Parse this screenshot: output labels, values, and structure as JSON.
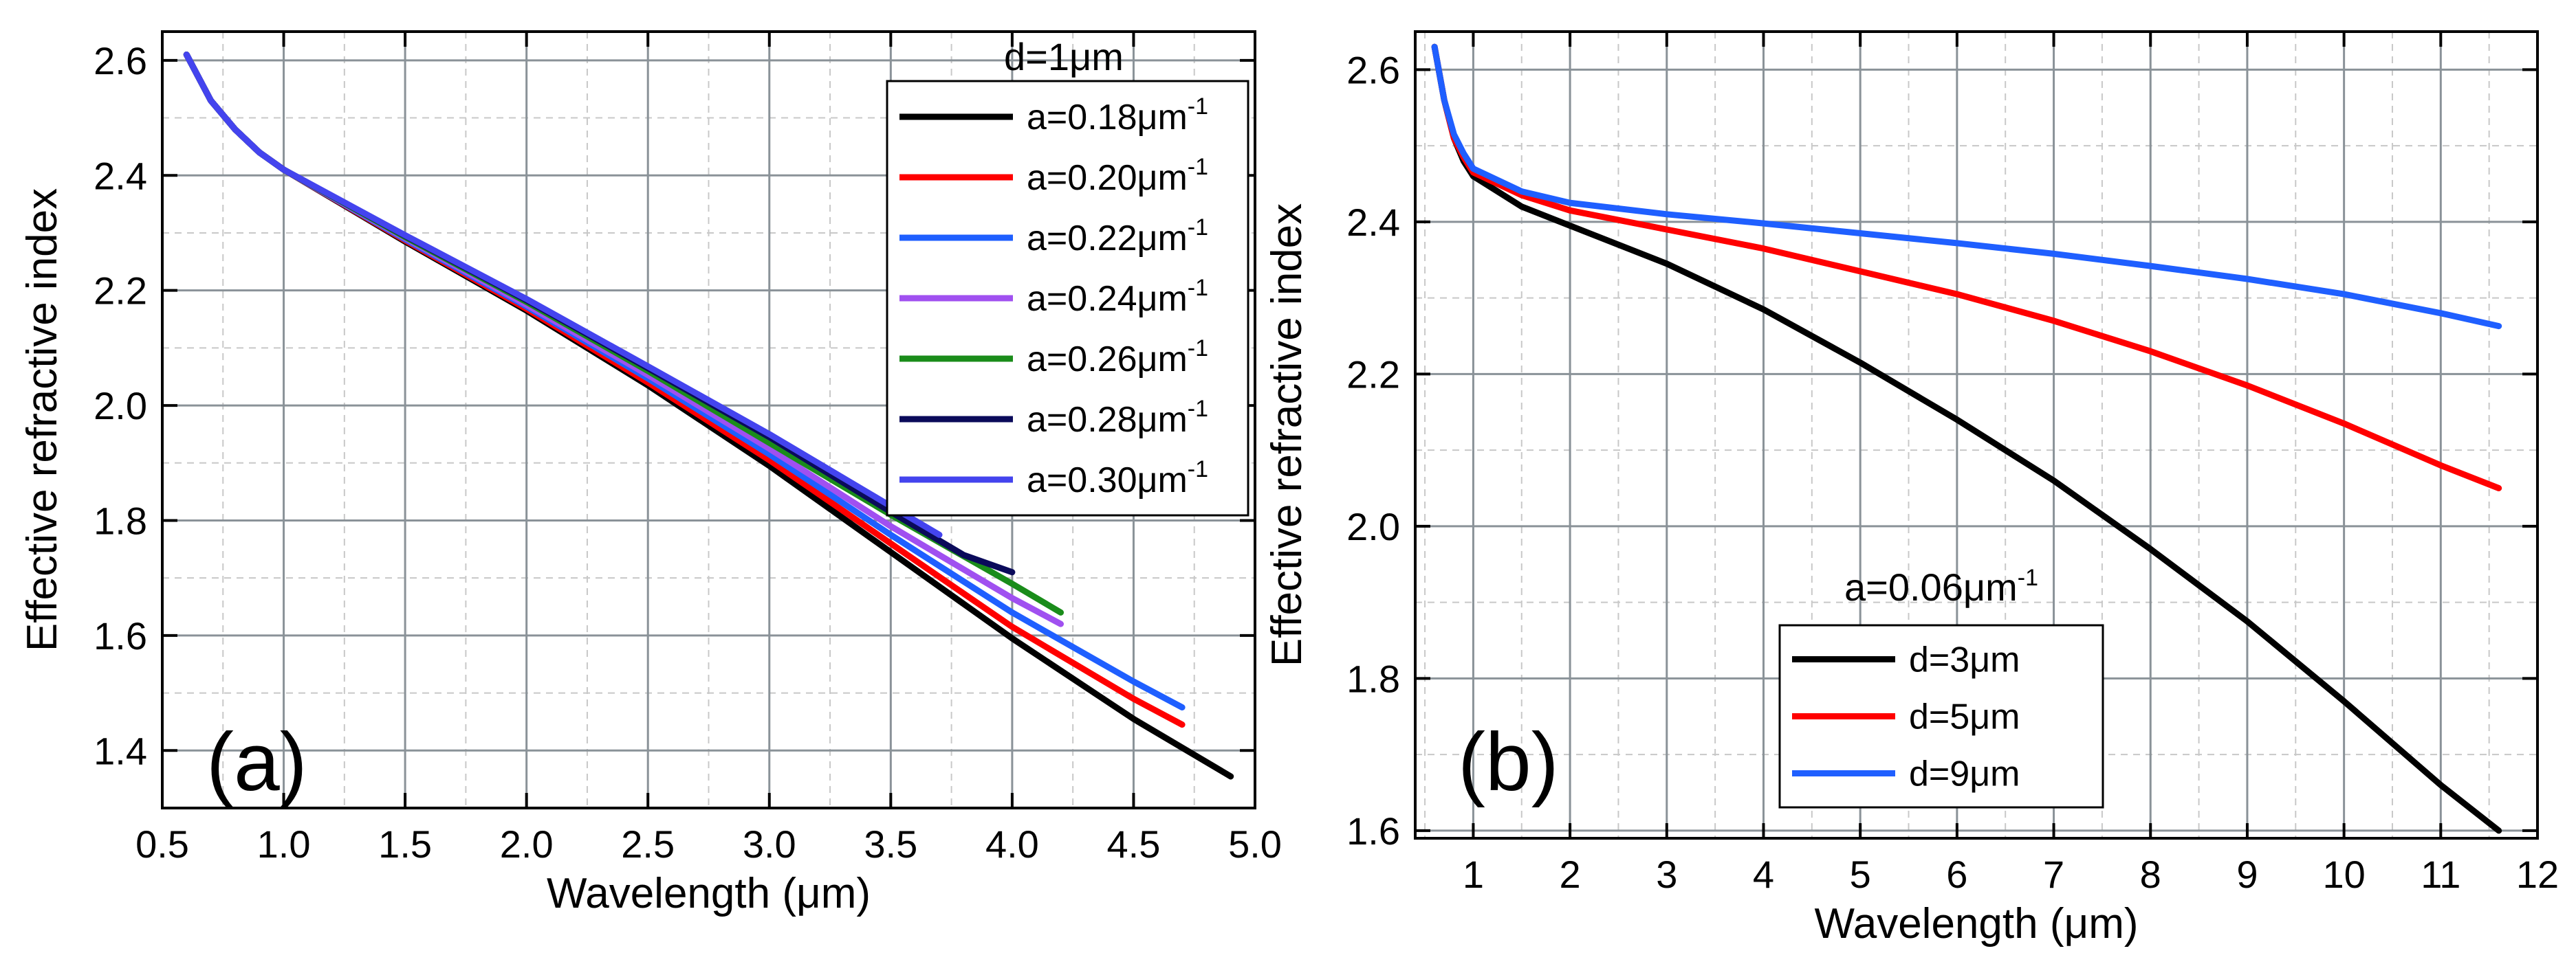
{
  "chart_data": [
    {
      "type": "line",
      "panel_label": "(a)",
      "xlabel": "Wavelength (μm)",
      "ylabel": "Effective refractive index",
      "xlim": [
        0.5,
        5.0
      ],
      "ylim": [
        1.3,
        2.65
      ],
      "xticks": [
        "0.5",
        "1.0",
        "1.5",
        "2.0",
        "2.5",
        "3.0",
        "3.5",
        "4.0",
        "4.5",
        "5.0"
      ],
      "xtick_values": [
        0.5,
        1.0,
        1.5,
        2.0,
        2.5,
        3.0,
        3.5,
        4.0,
        4.5,
        5.0
      ],
      "yticks": [
        "1.4",
        "1.6",
        "1.8",
        "2.0",
        "2.2",
        "2.4",
        "2.6"
      ],
      "ytick_values": [
        1.4,
        1.6,
        1.8,
        2.0,
        2.2,
        2.4,
        2.6
      ],
      "grid": true,
      "legend": {
        "title": "d=1μm",
        "title_prefix": "",
        "position": "top-right",
        "entries": [
          {
            "prefix": "a=0.18μm",
            "sup": "-1"
          },
          {
            "prefix": "a=0.20μm",
            "sup": "-1"
          },
          {
            "prefix": "a=0.22μm",
            "sup": "-1"
          },
          {
            "prefix": "a=0.24μm",
            "sup": "-1"
          },
          {
            "prefix": "a=0.26μm",
            "sup": "-1"
          },
          {
            "prefix": "a=0.28μm",
            "sup": "-1"
          },
          {
            "prefix": "a=0.30μm",
            "sup": "-1"
          }
        ]
      },
      "series": [
        {
          "name": "a=0.18μm-1",
          "color": "#000000",
          "x": [
            0.6,
            0.7,
            0.8,
            0.9,
            1.0,
            1.5,
            2.0,
            2.5,
            3.0,
            3.5,
            4.0,
            4.5,
            4.9
          ],
          "y": [
            2.61,
            2.53,
            2.48,
            2.44,
            2.41,
            2.285,
            2.165,
            2.035,
            1.895,
            1.745,
            1.595,
            1.455,
            1.355
          ]
        },
        {
          "name": "a=0.20μm-1",
          "color": "#ff0000",
          "x": [
            0.6,
            0.7,
            0.8,
            0.9,
            1.0,
            1.5,
            2.0,
            2.5,
            3.0,
            3.5,
            4.0,
            4.5,
            4.7
          ],
          "y": [
            2.61,
            2.53,
            2.48,
            2.44,
            2.41,
            2.287,
            2.168,
            2.04,
            1.905,
            1.76,
            1.615,
            1.49,
            1.445
          ]
        },
        {
          "name": "a=0.22μm-1",
          "color": "#1f5fff",
          "x": [
            0.6,
            0.7,
            0.8,
            0.9,
            1.0,
            1.5,
            2.0,
            2.5,
            3.0,
            3.5,
            4.0,
            4.5,
            4.7
          ],
          "y": [
            2.61,
            2.53,
            2.48,
            2.44,
            2.41,
            2.289,
            2.172,
            2.047,
            1.915,
            1.775,
            1.64,
            1.52,
            1.475
          ]
        },
        {
          "name": "a=0.24μm-1",
          "color": "#a050f0",
          "x": [
            0.6,
            0.7,
            0.8,
            0.9,
            1.0,
            1.5,
            2.0,
            2.5,
            3.0,
            3.5,
            4.0,
            4.2
          ],
          "y": [
            2.61,
            2.53,
            2.48,
            2.44,
            2.41,
            2.291,
            2.175,
            2.053,
            1.925,
            1.79,
            1.665,
            1.62
          ]
        },
        {
          "name": "a=0.26μm-1",
          "color": "#1a8c1a",
          "x": [
            0.6,
            0.7,
            0.8,
            0.9,
            1.0,
            1.5,
            2.0,
            2.5,
            3.0,
            3.5,
            4.0,
            4.2
          ],
          "y": [
            2.61,
            2.53,
            2.48,
            2.44,
            2.41,
            2.293,
            2.18,
            2.06,
            1.935,
            1.81,
            1.69,
            1.64
          ]
        },
        {
          "name": "a=0.28μm-1",
          "color": "#0a0a5a",
          "x": [
            0.6,
            0.7,
            0.8,
            0.9,
            1.0,
            1.5,
            2.0,
            2.5,
            3.0,
            3.5,
            3.8,
            4.0
          ],
          "y": [
            2.61,
            2.53,
            2.48,
            2.44,
            2.41,
            2.295,
            2.183,
            2.065,
            1.945,
            1.815,
            1.74,
            1.71
          ]
        },
        {
          "name": "a=0.30μm-1",
          "color": "#4444ee",
          "x": [
            0.6,
            0.7,
            0.8,
            0.9,
            1.0,
            1.5,
            2.0,
            2.5,
            3.0,
            3.5,
            3.7
          ],
          "y": [
            2.61,
            2.53,
            2.48,
            2.44,
            2.41,
            2.296,
            2.185,
            2.068,
            1.95,
            1.825,
            1.775
          ]
        }
      ]
    },
    {
      "type": "line",
      "panel_label": "(b)",
      "xlabel": "Wavelength (μm)",
      "ylabel": "Effective refractive index",
      "xlim": [
        0.4,
        12.0
      ],
      "ylim": [
        1.59,
        2.65
      ],
      "xticks": [
        "1",
        "2",
        "3",
        "4",
        "5",
        "6",
        "7",
        "8",
        "9",
        "10",
        "11",
        "12"
      ],
      "xtick_values": [
        1,
        2,
        3,
        4,
        5,
        6,
        7,
        8,
        9,
        10,
        11,
        12
      ],
      "yticks": [
        "1.6",
        "1.8",
        "2.0",
        "2.2",
        "2.4",
        "2.6"
      ],
      "ytick_values": [
        1.6,
        1.8,
        2.0,
        2.2,
        2.4,
        2.6
      ],
      "grid": true,
      "legend": {
        "title": "",
        "title_prefix": "a=0.06μm",
        "title_sup": "-1",
        "position": "bottom-center",
        "entries": [
          {
            "prefix": "d=3μm",
            "sup": ""
          },
          {
            "prefix": "d=5μm",
            "sup": ""
          },
          {
            "prefix": "d=9μm",
            "sup": ""
          }
        ]
      },
      "series": [
        {
          "name": "d=3μm",
          "color": "#000000",
          "x": [
            0.6,
            0.7,
            0.8,
            0.9,
            1.0,
            1.5,
            2.0,
            3.0,
            4.0,
            5.0,
            6.0,
            7.0,
            8.0,
            9.0,
            10.0,
            11.0,
            11.6
          ],
          "y": [
            2.63,
            2.56,
            2.51,
            2.48,
            2.46,
            2.42,
            2.395,
            2.345,
            2.285,
            2.215,
            2.14,
            2.06,
            1.97,
            1.875,
            1.77,
            1.66,
            1.6
          ]
        },
        {
          "name": "d=5μm",
          "color": "#ff0000",
          "x": [
            0.6,
            0.7,
            0.8,
            0.9,
            1.0,
            1.5,
            2.0,
            3.0,
            4.0,
            5.0,
            6.0,
            7.0,
            8.0,
            9.0,
            10.0,
            11.0,
            11.6
          ],
          "y": [
            2.63,
            2.56,
            2.51,
            2.485,
            2.465,
            2.435,
            2.415,
            2.39,
            2.365,
            2.335,
            2.305,
            2.27,
            2.23,
            2.185,
            2.135,
            2.08,
            2.05
          ]
        },
        {
          "name": "d=9μm",
          "color": "#1f5fff",
          "x": [
            0.6,
            0.7,
            0.8,
            0.9,
            1.0,
            1.5,
            2.0,
            3.0,
            4.0,
            5.0,
            6.0,
            7.0,
            8.0,
            9.0,
            10.0,
            11.0,
            11.6
          ],
          "y": [
            2.63,
            2.56,
            2.515,
            2.49,
            2.47,
            2.44,
            2.425,
            2.41,
            2.398,
            2.385,
            2.372,
            2.358,
            2.342,
            2.325,
            2.305,
            2.28,
            2.263
          ]
        }
      ]
    }
  ]
}
